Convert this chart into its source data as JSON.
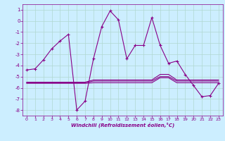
{
  "title": "",
  "xlabel": "Windchill (Refroidissement éolien,°C)",
  "bg_color": "#cceeff",
  "grid_color": "#aaddcc",
  "line_color": "#880088",
  "xlim": [
    -0.5,
    23.5
  ],
  "ylim": [
    -8.5,
    1.5
  ],
  "yticks": [
    1,
    0,
    -1,
    -2,
    -3,
    -4,
    -5,
    -6,
    -7,
    -8
  ],
  "xticks": [
    0,
    1,
    2,
    3,
    4,
    5,
    6,
    7,
    8,
    9,
    10,
    11,
    12,
    13,
    14,
    15,
    16,
    17,
    18,
    19,
    20,
    21,
    22,
    23
  ],
  "line1_x": [
    0,
    1,
    2,
    3,
    4,
    5,
    6,
    7,
    8,
    9,
    10,
    11,
    12,
    13,
    14,
    15,
    16,
    17,
    18,
    19,
    20,
    21,
    22,
    23
  ],
  "line1_y": [
    -4.4,
    -4.3,
    -3.5,
    -2.5,
    -1.8,
    -1.2,
    -8.0,
    -7.2,
    -3.4,
    -0.5,
    0.9,
    0.1,
    -3.4,
    -2.2,
    -2.2,
    0.3,
    -2.2,
    -3.8,
    -3.6,
    -4.8,
    -5.8,
    -6.8,
    -6.7,
    -5.6
  ],
  "line2_x": [
    0,
    1,
    2,
    3,
    4,
    5,
    6,
    7,
    8,
    9,
    10,
    11,
    12,
    13,
    14,
    15,
    16,
    17,
    18,
    19,
    20,
    21,
    22,
    23
  ],
  "line2_y": [
    -5.5,
    -5.5,
    -5.5,
    -5.5,
    -5.5,
    -5.5,
    -5.5,
    -5.5,
    -5.3,
    -5.3,
    -5.3,
    -5.3,
    -5.3,
    -5.3,
    -5.3,
    -5.3,
    -4.8,
    -4.8,
    -5.3,
    -5.3,
    -5.3,
    -5.3,
    -5.3,
    -5.3
  ],
  "line3_x": [
    0,
    1,
    2,
    3,
    4,
    5,
    6,
    7,
    8,
    9,
    10,
    11,
    12,
    13,
    14,
    15,
    16,
    17,
    18,
    19,
    20,
    21,
    22,
    23
  ],
  "line3_y": [
    -5.55,
    -5.55,
    -5.55,
    -5.55,
    -5.55,
    -5.55,
    -5.55,
    -5.55,
    -5.4,
    -5.4,
    -5.4,
    -5.4,
    -5.4,
    -5.4,
    -5.4,
    -5.4,
    -5.0,
    -5.0,
    -5.4,
    -5.4,
    -5.4,
    -5.4,
    -5.4,
    -5.4
  ],
  "line4_x": [
    0,
    1,
    2,
    3,
    4,
    5,
    6,
    7,
    8,
    9,
    10,
    11,
    12,
    13,
    14,
    15,
    16,
    17,
    18,
    19,
    20,
    21,
    22,
    23
  ],
  "line4_y": [
    -5.6,
    -5.6,
    -5.6,
    -5.6,
    -5.6,
    -5.6,
    -5.6,
    -5.6,
    -5.55,
    -5.55,
    -5.55,
    -5.55,
    -5.55,
    -5.55,
    -5.55,
    -5.55,
    -5.1,
    -5.1,
    -5.55,
    -5.55,
    -5.55,
    -5.55,
    -5.55,
    -5.55
  ]
}
